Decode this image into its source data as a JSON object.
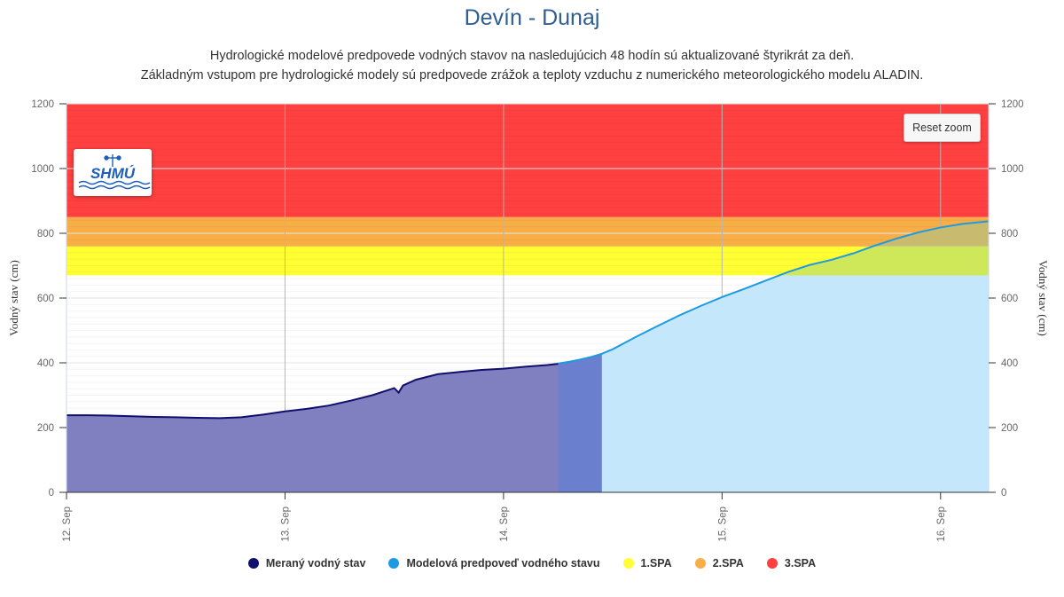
{
  "header": {
    "title": "Devín - Dunaj",
    "subtitle_line1": "Hydrologické modelové predpovede vodných stavov na nasledujúcich 48 hodín sú aktualizované štyrikrát za deň.",
    "subtitle_line2": "Základným vstupom pre hydrologické modely sú predpovede zrážok a teploty vzduchu z numerického meteorologického modelu ALADIN."
  },
  "controls": {
    "reset_zoom_label": "Reset zoom"
  },
  "logo": {
    "text": "SHMÚ",
    "icon": "shmu-logo-icon"
  },
  "colors": {
    "measured": "#0f0f6e",
    "measured_fill": "#8080c0",
    "forecast": "#1e9be0",
    "forecast_fill": "#c5e7fb",
    "overlap_fill": "#6a7fce",
    "spa1": "#ffff33",
    "spa2": "#f8ae46",
    "spa3": "#ff4040",
    "spa_overlap": "#cfe85a"
  },
  "chart_data": {
    "type": "area",
    "ylabel_left": "Vodný stav (cm)",
    "ylabel_right": "Vodný stav (cm)",
    "ylim": [
      0,
      1200
    ],
    "yticks": [
      0,
      200,
      400,
      600,
      800,
      1000,
      1200
    ],
    "xlim": [
      12.0,
      16.22
    ],
    "xticks": [
      {
        "x": 12,
        "label": "12. Sep"
      },
      {
        "x": 13,
        "label": "13. Sep"
      },
      {
        "x": 14,
        "label": "14. Sep"
      },
      {
        "x": 15,
        "label": "15. Sep"
      },
      {
        "x": 16,
        "label": "16. Sep"
      }
    ],
    "grid": true,
    "legend_position": "bottom-center",
    "bands": [
      {
        "name": "1.SPA",
        "from": 670,
        "to": 760
      },
      {
        "name": "2.SPA",
        "from": 760,
        "to": 850
      },
      {
        "name": "3.SPA",
        "from": 850,
        "to": 1200
      }
    ],
    "series": [
      {
        "name": "Meraný vodný stav",
        "x": [
          12.0,
          12.1,
          12.2,
          12.3,
          12.4,
          12.5,
          12.6,
          12.7,
          12.8,
          12.9,
          13.0,
          13.1,
          13.2,
          13.3,
          13.4,
          13.5,
          13.52,
          13.54,
          13.6,
          13.7,
          13.8,
          13.9,
          14.0,
          14.1,
          14.2,
          14.25
        ],
        "values": [
          238,
          238,
          237,
          235,
          233,
          232,
          230,
          229,
          232,
          240,
          250,
          258,
          268,
          283,
          300,
          322,
          308,
          330,
          348,
          365,
          372,
          378,
          382,
          388,
          393,
          397
        ]
      },
      {
        "name": "Modelová predpoveď vodného stavu",
        "x": [
          14.25,
          14.3,
          14.35,
          14.4,
          14.45,
          14.5,
          14.6,
          14.7,
          14.8,
          14.9,
          15.0,
          15.1,
          15.2,
          15.3,
          15.4,
          15.5,
          15.6,
          15.7,
          15.8,
          15.9,
          16.0,
          16.1,
          16.22
        ],
        "values": [
          398,
          403,
          410,
          418,
          428,
          442,
          478,
          512,
          545,
          575,
          603,
          628,
          654,
          680,
          702,
          718,
          738,
          762,
          784,
          803,
          818,
          829,
          837
        ]
      }
    ],
    "legend": [
      "Meraný vodný stav",
      "Modelová predpoveď vodného stavu",
      "1.SPA",
      "2.SPA",
      "3.SPA"
    ]
  }
}
